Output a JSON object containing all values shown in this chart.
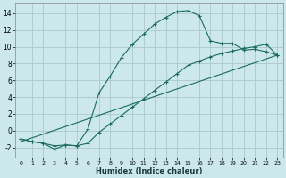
{
  "xlabel": "Humidex (Indice chaleur)",
  "bg_color": "#cce8ec",
  "grid_color": "#aac8cc",
  "line_color": "#1a6b5a",
  "xlim": [
    -0.5,
    23.5
  ],
  "ylim": [
    -3.2,
    15.2
  ],
  "xticks": [
    0,
    1,
    2,
    3,
    4,
    5,
    6,
    7,
    8,
    9,
    10,
    11,
    12,
    13,
    14,
    15,
    16,
    17,
    18,
    19,
    20,
    21,
    22,
    23
  ],
  "yticks": [
    -2,
    0,
    2,
    4,
    6,
    8,
    10,
    12,
    14
  ],
  "curve1_x": [
    0,
    1,
    2,
    3,
    4,
    5,
    6,
    7,
    8,
    9,
    10,
    11,
    12,
    13,
    14,
    15,
    16,
    17,
    18,
    19,
    20,
    21,
    22,
    23
  ],
  "curve1_y": [
    -1.0,
    -1.3,
    -1.5,
    -2.2,
    -1.7,
    -1.8,
    0.2,
    4.5,
    6.5,
    8.7,
    10.3,
    11.5,
    12.7,
    13.5,
    14.2,
    14.3,
    13.7,
    10.7,
    10.4,
    10.4,
    9.6,
    9.7,
    9.4,
    9.0
  ],
  "curve2_x": [
    0,
    1,
    2,
    3,
    4,
    5,
    6,
    7,
    8,
    9,
    10,
    11,
    12,
    13,
    14,
    15,
    16,
    17,
    18,
    19,
    20,
    21,
    22,
    23
  ],
  "curve2_y": [
    -1.0,
    -1.3,
    -1.5,
    -1.8,
    -1.7,
    -1.8,
    -1.5,
    -0.2,
    0.8,
    1.8,
    2.8,
    3.8,
    4.8,
    5.8,
    6.8,
    7.8,
    8.3,
    8.8,
    9.2,
    9.5,
    9.8,
    10.0,
    10.3,
    9.0
  ],
  "curve3_x": [
    0,
    23
  ],
  "curve3_y": [
    -1.3,
    9.0
  ]
}
